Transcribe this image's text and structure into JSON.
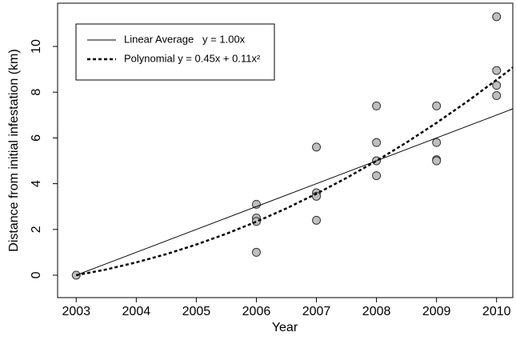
{
  "chart_data": {
    "type": "scatter",
    "xlabel": "Year",
    "ylabel": "Distance from initial infestation (km)",
    "xlim": [
      2002.69,
      2010.27
    ],
    "xticks": [
      2003,
      2004,
      2005,
      2006,
      2007,
      2008,
      2009,
      2010
    ],
    "ylim": [
      -0.98,
      11.89
    ],
    "yticks": [
      0,
      2,
      4,
      6,
      8,
      10
    ],
    "legend": "top-left",
    "series": [
      {
        "type": "scatter",
        "color": "#bfbfbf",
        "x": [
          2003,
          2006,
          2006,
          2006,
          2006,
          2007,
          2007,
          2007,
          2007,
          2008,
          2008,
          2008,
          2008,
          2009,
          2009,
          2009,
          2009,
          2010,
          2010,
          2010,
          2010
        ],
        "values": [
          0,
          3.1,
          2.5,
          2.35,
          1.0,
          5.6,
          3.6,
          3.45,
          2.4,
          7.4,
          5.8,
          5.0,
          4.35,
          7.4,
          5.8,
          5.05,
          5.0,
          11.3,
          8.95,
          8.3,
          7.85
        ]
      },
      {
        "type": "line",
        "name": "Linear Average   y = 1.00x",
        "color": "#000000",
        "dash": "solid",
        "x": [
          2003,
          2010.27
        ],
        "values": [
          0,
          7.27
        ]
      },
      {
        "type": "line",
        "name": "Polynomial y = 0.45x + 0.11x²",
        "color": "#000000",
        "dash": "dotted",
        "x": [
          2003,
          2003.5,
          2004,
          2004.5,
          2005,
          2005.5,
          2006,
          2006.5,
          2007,
          2007.5,
          2008,
          2008.5,
          2009,
          2009.5,
          2010,
          2010.27
        ],
        "values": [
          0,
          0.25,
          0.56,
          0.92,
          1.34,
          1.81,
          2.34,
          2.92,
          3.56,
          4.25,
          5.0,
          5.8,
          6.66,
          7.57,
          8.54,
          9.08
        ]
      }
    ]
  }
}
